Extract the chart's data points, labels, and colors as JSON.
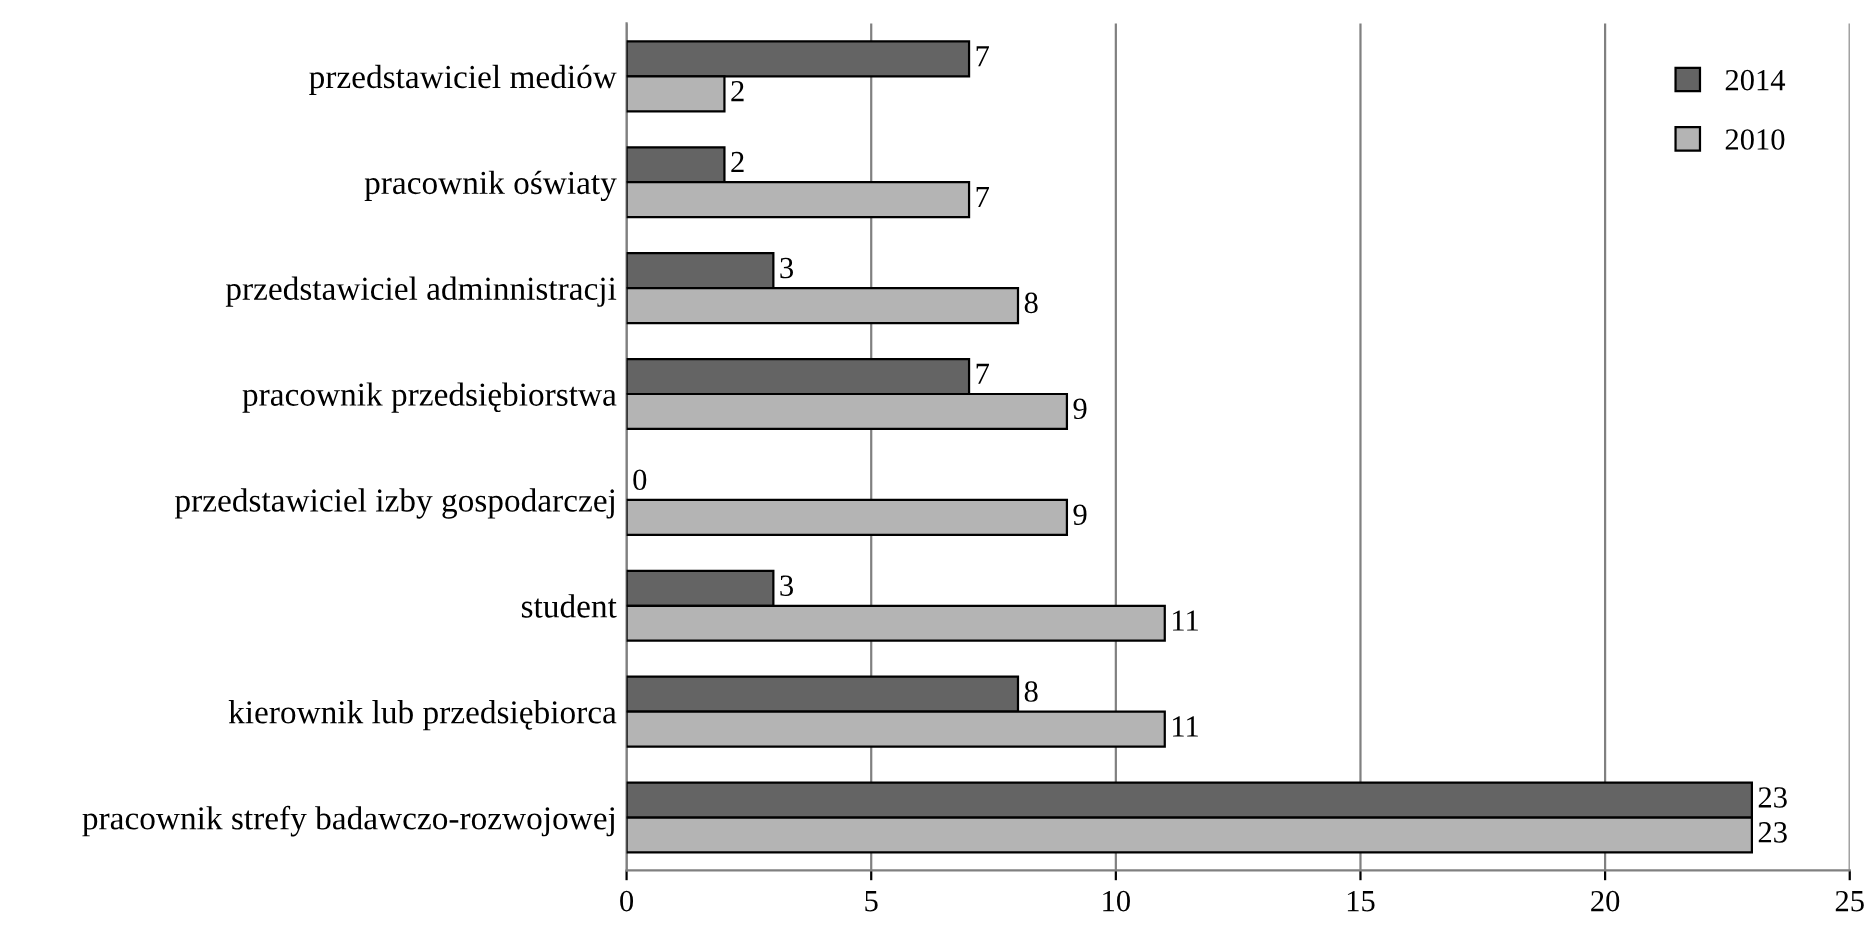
{
  "chart_data": {
    "type": "bar",
    "orientation": "horizontal",
    "categories": [
      "przedstawiciel mediów",
      "pracownik oświaty",
      "przedstawiciel adminnistracji",
      "pracownik przedsiębiorstwa",
      "przedstawiciel izby gospodarczej",
      "student",
      "kierownik lub przedsiębiorca",
      "pracownik strefy badawczo-rozwojowej"
    ],
    "series": [
      {
        "name": "2014",
        "color": "#646464",
        "values": [
          7,
          2,
          3,
          7,
          0,
          3,
          8,
          23
        ]
      },
      {
        "name": "2010",
        "color": "#b4b4b4",
        "values": [
          2,
          7,
          8,
          9,
          9,
          11,
          11,
          23
        ]
      }
    ],
    "xlim": [
      0,
      25
    ],
    "xticks": [
      0,
      5,
      10,
      15,
      20,
      25
    ],
    "grid": "x",
    "legend": "top right",
    "data_labels": true
  }
}
